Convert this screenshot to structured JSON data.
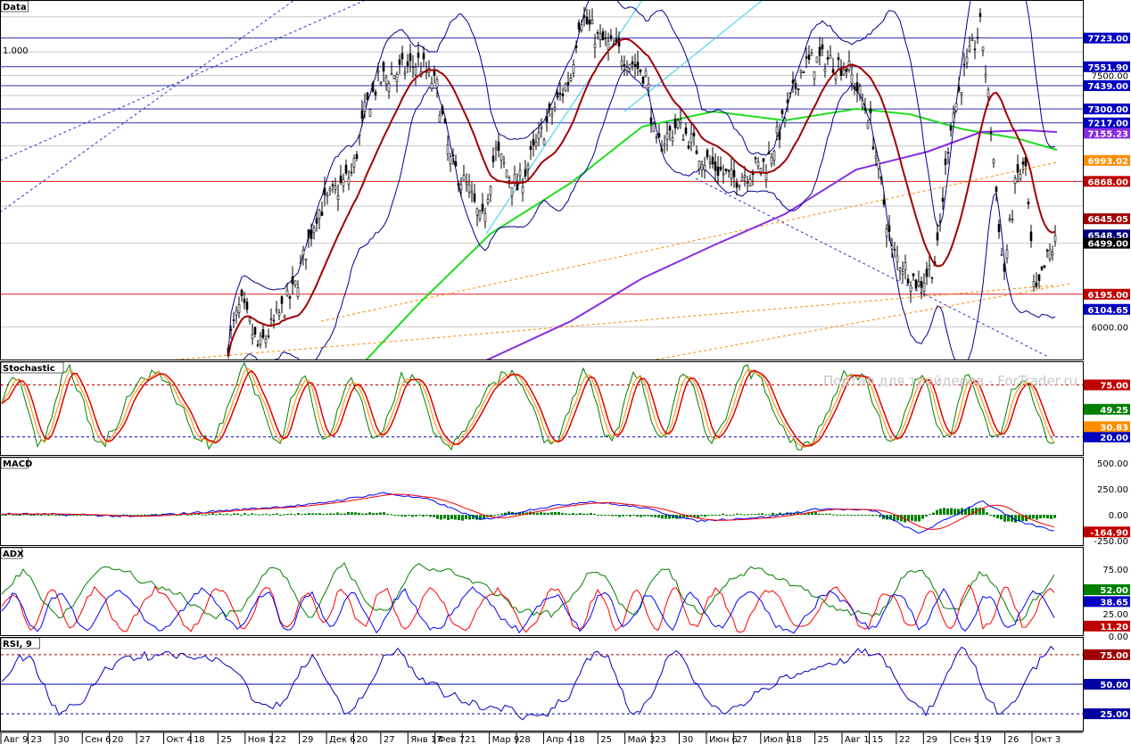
{
  "panels": {
    "price_title": "Data",
    "stoch_title": "Stochastic",
    "macd_title": "MACD",
    "adx_title": "ADX",
    "rsi_title": "RSI, 9",
    "fib_label": "1.000",
    "watermark": "Портал для трейдеров - ForTrader.ru"
  },
  "chart_data": [
    {
      "type": "line",
      "panel": "price",
      "description_series": [
        "Price",
        "SMA red",
        "SMA green",
        "SMA purple",
        "Bollinger upper",
        "Bollinger lower"
      ],
      "ylim": [
        5800,
        7950
      ],
      "axis_ticks": [
        "6000.00",
        "7500.00"
      ],
      "horizontal_levels": [
        {
          "label": "7723.00",
          "value": 7723.0,
          "color": "#0000c0",
          "line": "#3030b0"
        },
        {
          "label": "7551.90",
          "value": 7551.9,
          "color": "#0000c0",
          "line": "#3030b0"
        },
        {
          "label": "7439.00",
          "value": 7439.0,
          "color": "#0000c0",
          "line": "#3030b0"
        },
        {
          "label": "7300.00",
          "value": 7300.0,
          "color": "#0000c0",
          "line": "#3030b0"
        },
        {
          "label": "7217.00",
          "value": 7217.0,
          "color": "#0000c0",
          "line": "#3030b0"
        },
        {
          "label": "6868.00",
          "value": 6868.0,
          "color": "#c00000",
          "line": "#d02020"
        },
        {
          "label": "6195.00",
          "value": 6195.0,
          "color": "#c00000",
          "line": "#d02020"
        },
        {
          "label": "6104.65",
          "value": 6104.65,
          "color": "#0000c0",
          "line": null
        }
      ],
      "right_tags": [
        {
          "label": "7155.23",
          "value": 7155.23,
          "color": "#8a2be2"
        },
        {
          "label": "6993.02",
          "value": 6993.02,
          "color": "#ff8c00"
        },
        {
          "label": "6645.05",
          "value": 6645.05,
          "color": "#a00000"
        },
        {
          "label": "6548.50",
          "value": 6548.5,
          "color": "#000080"
        },
        {
          "label": "6499.00",
          "value": 6499.0,
          "color": "#000000"
        }
      ],
      "gray_levels": [
        7850,
        7640,
        7500,
        7380,
        7080,
        6720,
        6499,
        6000
      ]
    },
    {
      "type": "line",
      "panel": "stochastic",
      "ylim": [
        0,
        100
      ],
      "levels": [
        {
          "label": "75.00",
          "value": 75,
          "color": "#c00000"
        },
        {
          "label": "20.00",
          "value": 20,
          "color": "#0000c0"
        }
      ],
      "right_tags": [
        {
          "label": "49.25",
          "value": 49.25,
          "color": "#008000"
        },
        {
          "label": "30.83",
          "value": 30.83,
          "color": "#ff8c00"
        }
      ]
    },
    {
      "type": "bar",
      "panel": "macd",
      "ylim": [
        -300,
        560
      ],
      "axis_ticks": [
        "500.00",
        "250.00",
        "0.00",
        "-250.00"
      ],
      "right_tags": [
        {
          "label": "-164.90",
          "value": -164.9,
          "color": "#c00000"
        }
      ]
    },
    {
      "type": "line",
      "panel": "adx",
      "ylim": [
        0,
        100
      ],
      "axis_ticks": [
        "75.00",
        "25.00",
        "0.00"
      ],
      "right_tags": [
        {
          "label": "52.00",
          "value": 52,
          "color": "#008000"
        },
        {
          "label": "38.65",
          "value": 38.65,
          "color": "#0000c0"
        },
        {
          "label": "11.20",
          "value": 11.2,
          "color": "#c00000"
        }
      ]
    },
    {
      "type": "line",
      "panel": "rsi",
      "ylim": [
        10,
        90
      ],
      "levels": [
        {
          "label": "75.00",
          "value": 75,
          "color": "#a00000"
        },
        {
          "label": "50.00",
          "value": 50,
          "color": "#0000a0"
        },
        {
          "label": "25.00",
          "value": 25,
          "color": "#0000a0"
        }
      ]
    }
  ],
  "x_axis": {
    "labels": [
      "Авг 9",
      "23",
      "30",
      "Сен 6",
      "20",
      "27",
      "Окт 4",
      "18",
      "25",
      "Ноя 1",
      "22",
      "29",
      "Дек 6",
      "20",
      "27",
      "Янв 17",
      "Фев 7",
      "21",
      "Мар 9",
      "28",
      "Апр 4",
      "18",
      "25",
      "Май 3",
      "23",
      "30",
      "Июн 6",
      "27",
      "Июл 4",
      "18",
      "25",
      "Авг 1",
      "15",
      "22",
      "29",
      "Сен 5",
      "19",
      "26",
      "Окт 3"
    ]
  },
  "colors": {
    "price": "#000000",
    "bollinger": "#000090",
    "sma_red": "#a00000",
    "sma_green": "#20dd20",
    "sma_purple": "#8a2be2",
    "stoch_green": "#008000",
    "stoch_red": "#e00000",
    "stoch_orange": "#ff8c00",
    "macd_line": "#0000ff",
    "macd_signal": "#ff0000",
    "macd_hist": "#008000",
    "adx_green": "#008000",
    "adx_red": "#ff0000",
    "adx_blue": "#0000ff",
    "rsi": "#0000c0"
  }
}
